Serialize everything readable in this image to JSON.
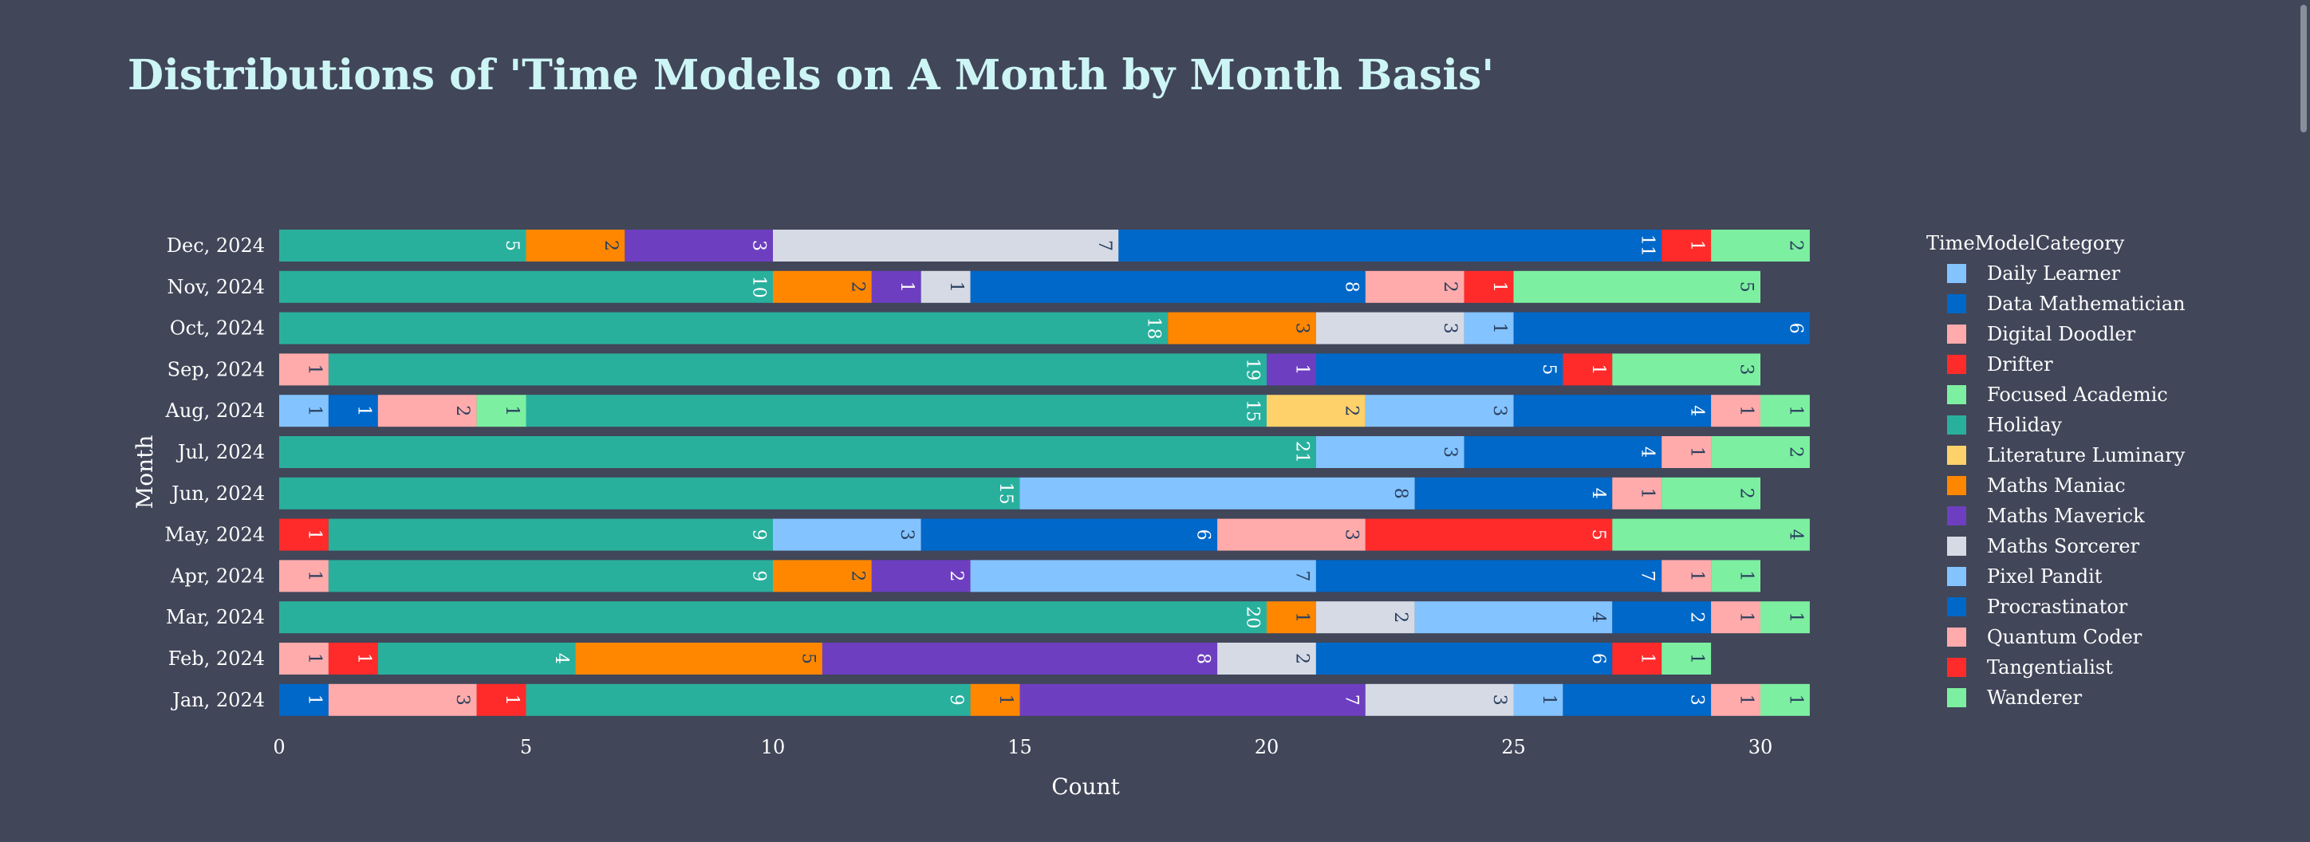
{
  "chart_data": {
    "type": "bar",
    "orientation": "horizontal",
    "barmode": "stack",
    "title": "Distributions of 'Time Models on A Month by Month Basis'",
    "xlabel": "Count",
    "ylabel": "Month",
    "legend_title": "TimeModelCategory",
    "legend_position": "right",
    "xlim": [
      0,
      31
    ],
    "xticks": [
      0,
      5,
      10,
      15,
      20,
      25,
      30
    ],
    "categories": [
      "Jan, 2024",
      "Feb, 2024",
      "Mar, 2024",
      "Apr, 2024",
      "May, 2024",
      "Jun, 2024",
      "Jul, 2024",
      "Aug, 2024",
      "Sep, 2024",
      "Oct, 2024",
      "Nov, 2024",
      "Dec, 2024"
    ],
    "legend": [
      {
        "name": "Daily Learner",
        "color": "#83c3ff"
      },
      {
        "name": "Data Mathematician",
        "color": "#0068c9"
      },
      {
        "name": "Digital Doodler",
        "color": "#ffabab"
      },
      {
        "name": "Drifter",
        "color": "#ff2b2b"
      },
      {
        "name": "Focused Academic",
        "color": "#7defa1"
      },
      {
        "name": "Holiday",
        "color": "#29b09d"
      },
      {
        "name": "Literature Luminary",
        "color": "#ffd16a"
      },
      {
        "name": "Maths Maniac",
        "color": "#ff8700"
      },
      {
        "name": "Maths Maverick",
        "color": "#6d3fc0"
      },
      {
        "name": "Maths Sorcerer",
        "color": "#d5dae5"
      },
      {
        "name": "Pixel Pandit",
        "color": "#83c3ff"
      },
      {
        "name": "Procrastinator",
        "color": "#0068c9"
      },
      {
        "name": "Quantum Coder",
        "color": "#ffabab"
      },
      {
        "name": "Tangentialist",
        "color": "#ff2b2b"
      },
      {
        "name": "Wanderer",
        "color": "#7defa1"
      }
    ],
    "rows": [
      {
        "month": "Jan, 2024",
        "segments": [
          {
            "series": "Data Mathematician",
            "value": 1
          },
          {
            "series": "Digital Doodler",
            "value": 3
          },
          {
            "series": "Drifter",
            "value": 1
          },
          {
            "series": "Holiday",
            "value": 9
          },
          {
            "series": "Maths Maniac",
            "value": 1
          },
          {
            "series": "Maths Maverick",
            "value": 7
          },
          {
            "series": "Maths Sorcerer",
            "value": 3
          },
          {
            "series": "Pixel Pandit",
            "value": 1
          },
          {
            "series": "Procrastinator",
            "value": 3
          },
          {
            "series": "Quantum Coder",
            "value": 1
          },
          {
            "series": "Wanderer",
            "value": 1
          }
        ]
      },
      {
        "month": "Feb, 2024",
        "segments": [
          {
            "series": "Digital Doodler",
            "value": 1
          },
          {
            "series": "Drifter",
            "value": 1
          },
          {
            "series": "Holiday",
            "value": 4
          },
          {
            "series": "Maths Maniac",
            "value": 5
          },
          {
            "series": "Maths Maverick",
            "value": 8
          },
          {
            "series": "Maths Sorcerer",
            "value": 2
          },
          {
            "series": "Procrastinator",
            "value": 6
          },
          {
            "series": "Tangentialist",
            "value": 1
          },
          {
            "series": "Wanderer",
            "value": 1
          }
        ]
      },
      {
        "month": "Mar, 2024",
        "segments": [
          {
            "series": "Holiday",
            "value": 20
          },
          {
            "series": "Maths Maniac",
            "value": 1
          },
          {
            "series": "Maths Sorcerer",
            "value": 2
          },
          {
            "series": "Pixel Pandit",
            "value": 4
          },
          {
            "series": "Procrastinator",
            "value": 2
          },
          {
            "series": "Quantum Coder",
            "value": 1
          },
          {
            "series": "Wanderer",
            "value": 1
          }
        ]
      },
      {
        "month": "Apr, 2024",
        "segments": [
          {
            "series": "Digital Doodler",
            "value": 1
          },
          {
            "series": "Holiday",
            "value": 9
          },
          {
            "series": "Maths Maniac",
            "value": 2
          },
          {
            "series": "Maths Maverick",
            "value": 2
          },
          {
            "series": "Pixel Pandit",
            "value": 7
          },
          {
            "series": "Procrastinator",
            "value": 7
          },
          {
            "series": "Quantum Coder",
            "value": 1
          },
          {
            "series": "Wanderer",
            "value": 1
          }
        ]
      },
      {
        "month": "May, 2024",
        "segments": [
          {
            "series": "Drifter",
            "value": 1
          },
          {
            "series": "Holiday",
            "value": 9
          },
          {
            "series": "Pixel Pandit",
            "value": 3
          },
          {
            "series": "Procrastinator",
            "value": 6
          },
          {
            "series": "Quantum Coder",
            "value": 3
          },
          {
            "series": "Tangentialist",
            "value": 5
          },
          {
            "series": "Wanderer",
            "value": 4
          }
        ]
      },
      {
        "month": "Jun, 2024",
        "segments": [
          {
            "series": "Holiday",
            "value": 15
          },
          {
            "series": "Pixel Pandit",
            "value": 8
          },
          {
            "series": "Procrastinator",
            "value": 4
          },
          {
            "series": "Quantum Coder",
            "value": 1
          },
          {
            "series": "Wanderer",
            "value": 2
          }
        ]
      },
      {
        "month": "Jul, 2024",
        "segments": [
          {
            "series": "Holiday",
            "value": 21
          },
          {
            "series": "Pixel Pandit",
            "value": 3
          },
          {
            "series": "Procrastinator",
            "value": 4
          },
          {
            "series": "Quantum Coder",
            "value": 1
          },
          {
            "series": "Wanderer",
            "value": 2
          }
        ]
      },
      {
        "month": "Aug, 2024",
        "segments": [
          {
            "series": "Daily Learner",
            "value": 1
          },
          {
            "series": "Data Mathematician",
            "value": 1
          },
          {
            "series": "Digital Doodler",
            "value": 2
          },
          {
            "series": "Focused Academic",
            "value": 1
          },
          {
            "series": "Holiday",
            "value": 15
          },
          {
            "series": "Literature Luminary",
            "value": 2
          },
          {
            "series": "Pixel Pandit",
            "value": 3
          },
          {
            "series": "Procrastinator",
            "value": 4
          },
          {
            "series": "Quantum Coder",
            "value": 1
          },
          {
            "series": "Wanderer",
            "value": 1
          }
        ]
      },
      {
        "month": "Sep, 2024",
        "segments": [
          {
            "series": "Digital Doodler",
            "value": 1
          },
          {
            "series": "Holiday",
            "value": 19
          },
          {
            "series": "Maths Maverick",
            "value": 1
          },
          {
            "series": "Procrastinator",
            "value": 5
          },
          {
            "series": "Tangentialist",
            "value": 1
          },
          {
            "series": "Wanderer",
            "value": 3
          }
        ]
      },
      {
        "month": "Oct, 2024",
        "segments": [
          {
            "series": "Holiday",
            "value": 18
          },
          {
            "series": "Maths Maniac",
            "value": 3
          },
          {
            "series": "Maths Sorcerer",
            "value": 3
          },
          {
            "series": "Pixel Pandit",
            "value": 1
          },
          {
            "series": "Procrastinator",
            "value": 6
          }
        ]
      },
      {
        "month": "Nov, 2024",
        "segments": [
          {
            "series": "Holiday",
            "value": 10
          },
          {
            "series": "Maths Maniac",
            "value": 2
          },
          {
            "series": "Maths Maverick",
            "value": 1
          },
          {
            "series": "Maths Sorcerer",
            "value": 1
          },
          {
            "series": "Procrastinator",
            "value": 8
          },
          {
            "series": "Quantum Coder",
            "value": 2
          },
          {
            "series": "Tangentialist",
            "value": 1
          },
          {
            "series": "Wanderer",
            "value": 5
          }
        ]
      },
      {
        "month": "Dec, 2024",
        "segments": [
          {
            "series": "Holiday",
            "value": 5
          },
          {
            "series": "Maths Maniac",
            "value": 2
          },
          {
            "series": "Maths Maverick",
            "value": 3
          },
          {
            "series": "Maths Sorcerer",
            "value": 7
          },
          {
            "series": "Procrastinator",
            "value": 11
          },
          {
            "series": "Tangentialist",
            "value": 1
          },
          {
            "series": "Wanderer",
            "value": 2
          }
        ]
      }
    ]
  },
  "colors": {
    "background": "#414659",
    "title": "#cdf5f5",
    "text": "#ffffff"
  }
}
